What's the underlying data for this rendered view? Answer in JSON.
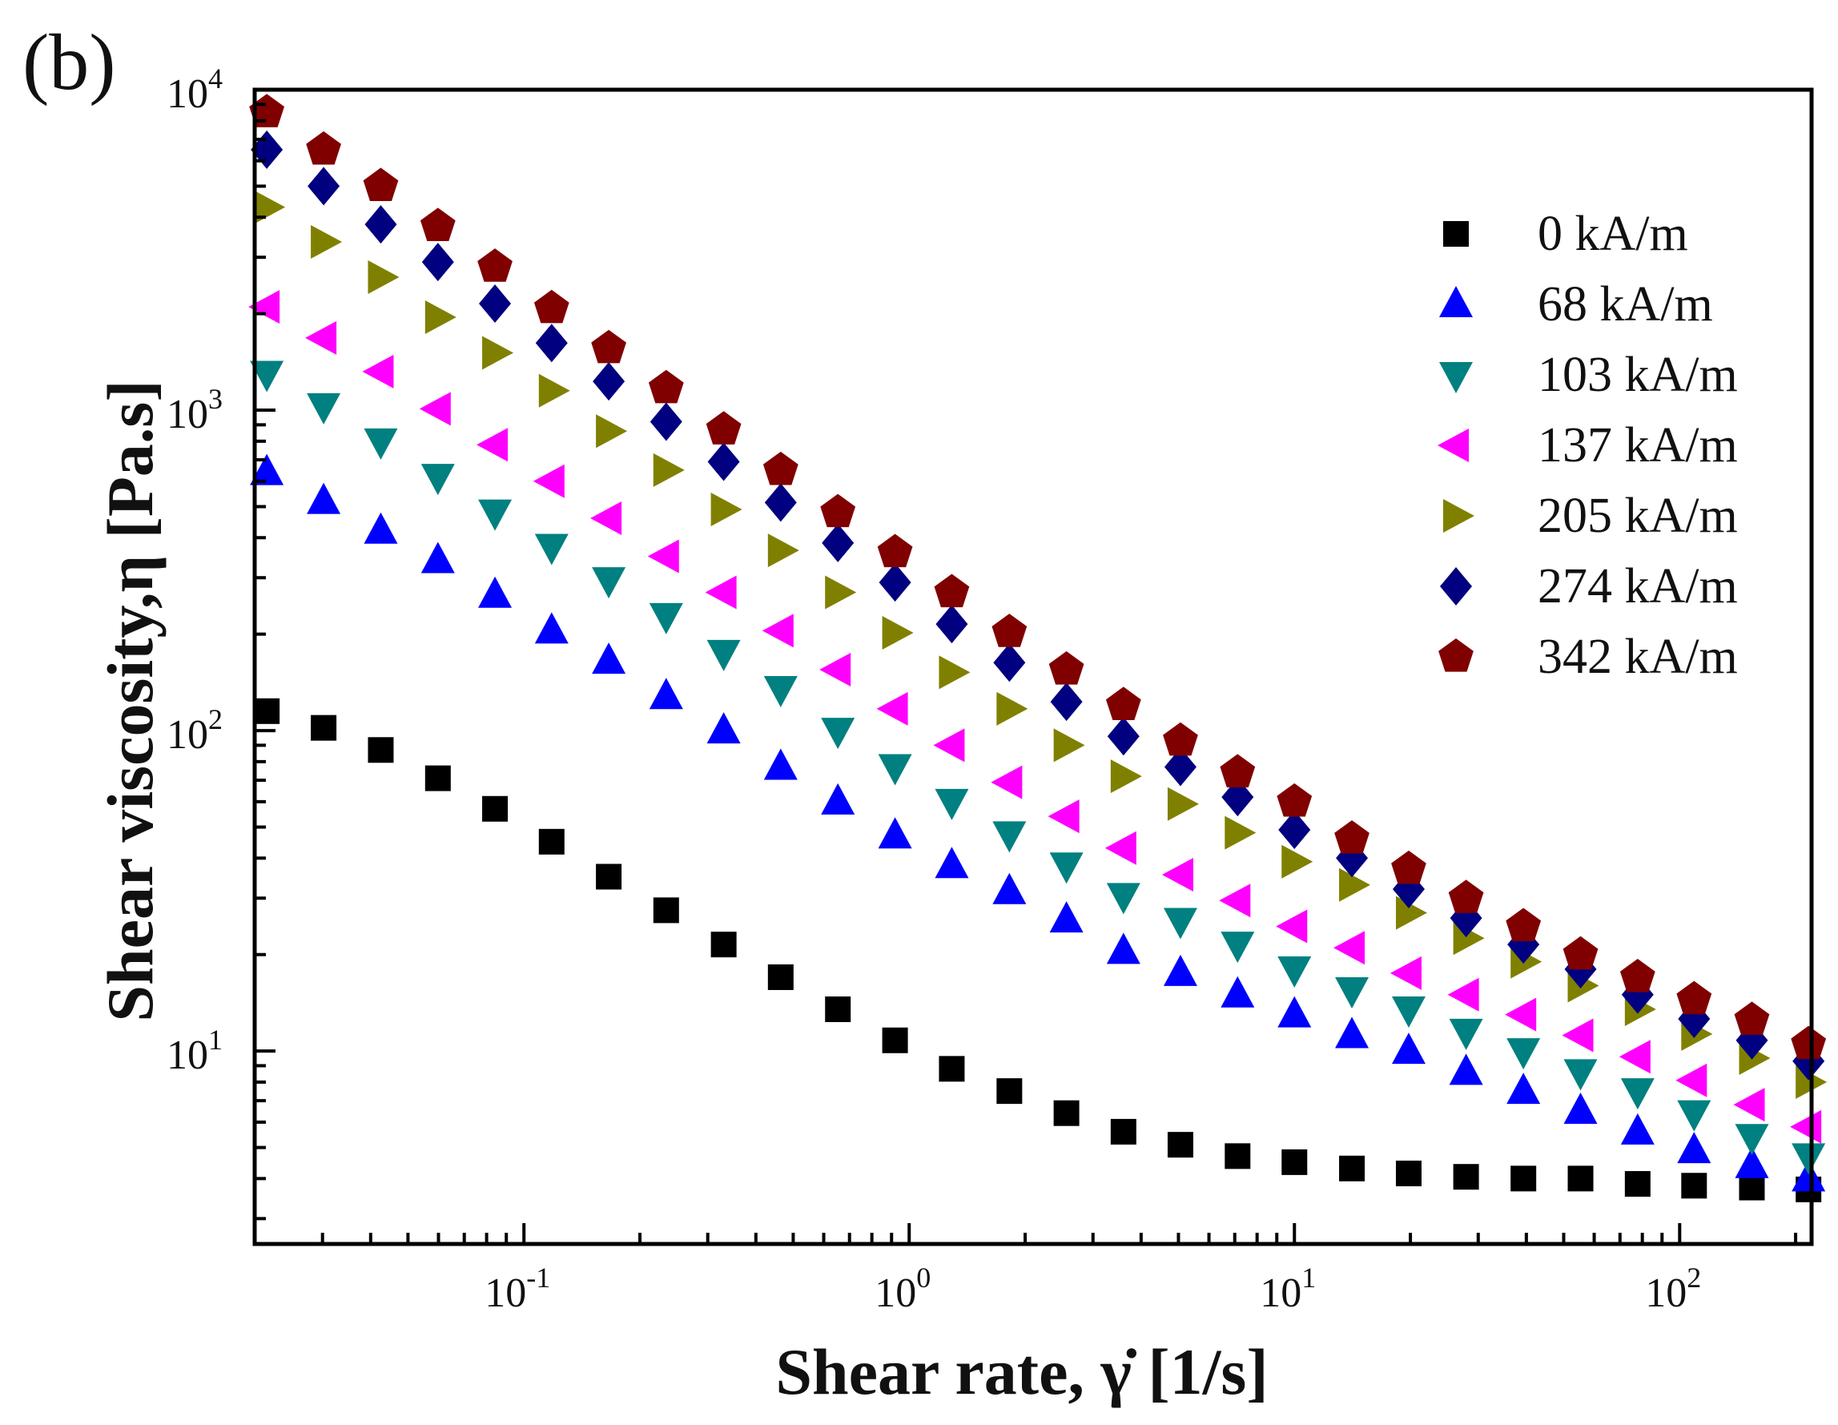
{
  "panel_label": "(b)",
  "chart_data": {
    "type": "scatter",
    "xlabel": "Shear rate, γ̇ [1/s]",
    "ylabel": "Shear viscosity,η [Pa.s]",
    "xscale": "log",
    "yscale": "log",
    "xlim": [
      0.02,
      220
    ],
    "ylim": [
      2.5,
      10000
    ],
    "x_ticks": [
      {
        "exp": "-1"
      },
      {
        "exp": "0"
      },
      {
        "exp": "1"
      },
      {
        "exp": "2"
      }
    ],
    "y_ticks": [
      {
        "exp": "1"
      },
      {
        "exp": "2"
      },
      {
        "exp": "3"
      },
      {
        "exp": "4"
      }
    ],
    "tick_base": "10",
    "grid": false,
    "legend_position": "top-right",
    "x": [
      0.0215,
      0.0302,
      0.0425,
      0.0598,
      0.0841,
      0.118,
      0.166,
      0.234,
      0.33,
      0.464,
      0.653,
      0.919,
      1.29,
      1.82,
      2.56,
      3.6,
      5.06,
      7.12,
      10.0,
      14.1,
      19.8,
      27.9,
      39.3,
      55.3,
      77.8,
      109,
      154,
      216
    ],
    "series": [
      {
        "name": "0 kA/m",
        "marker": "square",
        "color": "#000000",
        "values": [
          115,
          102,
          87,
          71,
          57,
          45,
          35,
          27.5,
          21.5,
          17,
          13.5,
          10.8,
          8.8,
          7.5,
          6.4,
          5.6,
          5.1,
          4.7,
          4.5,
          4.3,
          4.15,
          4.05,
          4.0,
          4.0,
          3.85,
          3.8,
          3.75,
          3.7
        ]
      },
      {
        "name": "68 kA/m",
        "marker": "triangle-up",
        "color": "#0000ff",
        "values": [
          640,
          520,
          420,
          340,
          265,
          205,
          165,
          128,
          100,
          77,
          60,
          47,
          38,
          31.5,
          25.7,
          20.5,
          17.5,
          15,
          13,
          11.2,
          10,
          8.6,
          7.5,
          6.5,
          5.6,
          4.9,
          4.4,
          4.0
        ]
      },
      {
        "name": "103 kA/m",
        "marker": "triangle-down",
        "color": "#008080",
        "values": [
          1300,
          1030,
          800,
          620,
          480,
          375,
          295,
          228,
          175,
          135,
          100,
          77,
          60,
          47.5,
          38,
          30.5,
          25.5,
          21.5,
          18,
          15.5,
          13.5,
          11.5,
          10,
          8.6,
          7.5,
          6.4,
          5.4,
          4.7
        ]
      },
      {
        "name": "137 kA/m",
        "marker": "triangle-left",
        "color": "#ff00ff",
        "values": [
          2100,
          1680,
          1320,
          1010,
          780,
          600,
          460,
          350,
          270,
          205,
          155,
          117,
          90,
          69,
          54,
          43,
          35.5,
          29.5,
          24.5,
          21,
          17.5,
          15,
          13,
          11.2,
          9.6,
          8.1,
          6.8,
          5.8
        ]
      },
      {
        "name": "205 kA/m",
        "marker": "triangle-right",
        "color": "#808000",
        "values": [
          4300,
          3350,
          2600,
          1950,
          1510,
          1150,
          860,
          650,
          490,
          365,
          270,
          202,
          152,
          117,
          90,
          72,
          59,
          48,
          39,
          33,
          27,
          22.5,
          19,
          16,
          13.5,
          11.3,
          9.5,
          8.0
        ]
      },
      {
        "name": "274 kA/m",
        "marker": "diamond",
        "color": "#000080",
        "values": [
          6500,
          5000,
          3800,
          2900,
          2150,
          1620,
          1230,
          920,
          690,
          515,
          385,
          290,
          215,
          163,
          123,
          96,
          77,
          62,
          49,
          40,
          32,
          26,
          21.5,
          18,
          15,
          12.6,
          10.8,
          9.3
        ]
      },
      {
        "name": "342 kA/m",
        "marker": "pentagon",
        "color": "#800000",
        "values": [
          8500,
          6500,
          5000,
          3750,
          2800,
          2080,
          1560,
          1170,
          870,
          650,
          480,
          360,
          270,
          203,
          155,
          120,
          93,
          74,
          60,
          46,
          37,
          30,
          24.5,
          20,
          17,
          14.5,
          12.5,
          10.5
        ]
      }
    ]
  }
}
